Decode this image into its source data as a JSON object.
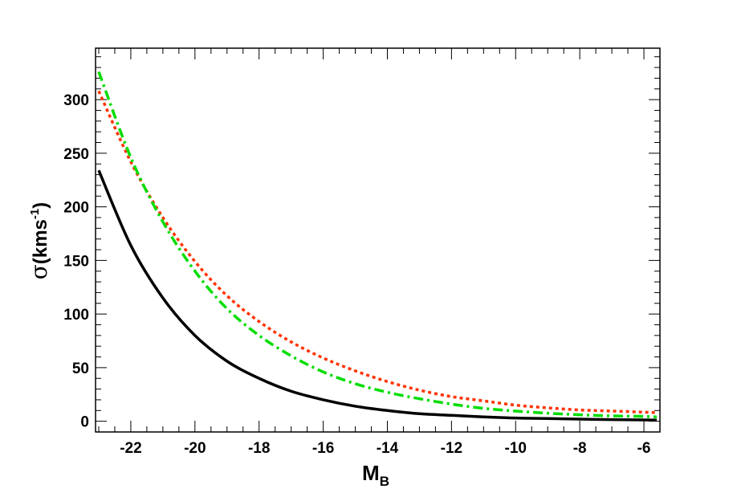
{
  "chart_data": {
    "type": "line",
    "title": "",
    "xlabel": "M",
    "xlabel_sub": "B",
    "ylabel_sigma": "σ",
    "ylabel_main": "(kms",
    "ylabel_sup": "-1",
    "ylabel_close": ")",
    "xlim": [
      -23.1,
      -5.5
    ],
    "ylim": [
      -10,
      348
    ],
    "xticks": [
      {
        "value": -22,
        "label": "-22"
      },
      {
        "value": -20,
        "label": "-20"
      },
      {
        "value": -18,
        "label": "-18"
      },
      {
        "value": -16,
        "label": "-16"
      },
      {
        "value": -14,
        "label": "-14"
      },
      {
        "value": -12,
        "label": "-12"
      },
      {
        "value": -10,
        "label": "-10"
      },
      {
        "value": -8,
        "label": "-8"
      },
      {
        "value": -6,
        "label": "-6"
      }
    ],
    "yticks": [
      {
        "value": 0,
        "label": "0"
      },
      {
        "value": 50,
        "label": "50"
      },
      {
        "value": 100,
        "label": "100"
      },
      {
        "value": 150,
        "label": "150"
      },
      {
        "value": 200,
        "label": "200"
      },
      {
        "value": 250,
        "label": "250"
      },
      {
        "value": 300,
        "label": "300"
      }
    ],
    "grid": false,
    "legend": "none",
    "x": [
      -23,
      -22,
      -21,
      -20,
      -19,
      -18,
      -17,
      -16,
      -15,
      -14,
      -13,
      -12,
      -11,
      -10,
      -9,
      -8,
      -7,
      -6,
      -5.6
    ],
    "series": [
      {
        "color": "#000000",
        "style": "solid",
        "values": [
          234,
          164,
          115,
          80,
          56,
          40,
          28,
          20,
          14,
          10,
          7,
          5.5,
          4,
          3,
          2.5,
          2,
          1.5,
          1.2,
          1
        ]
      },
      {
        "color": "#ff3300",
        "style": "dotted",
        "values": [
          308,
          242,
          190,
          149,
          117,
          93,
          74,
          59,
          47,
          37,
          29,
          23,
          19,
          15,
          12.5,
          10.5,
          9.5,
          8.5,
          8
        ]
      },
      {
        "color": "#00dd00",
        "style": "dash-dot",
        "values": [
          326,
          246,
          186,
          140,
          105,
          80,
          61,
          46,
          35,
          27,
          21,
          16,
          12,
          9.5,
          7.5,
          6,
          5,
          4.5,
          4
        ]
      }
    ]
  }
}
